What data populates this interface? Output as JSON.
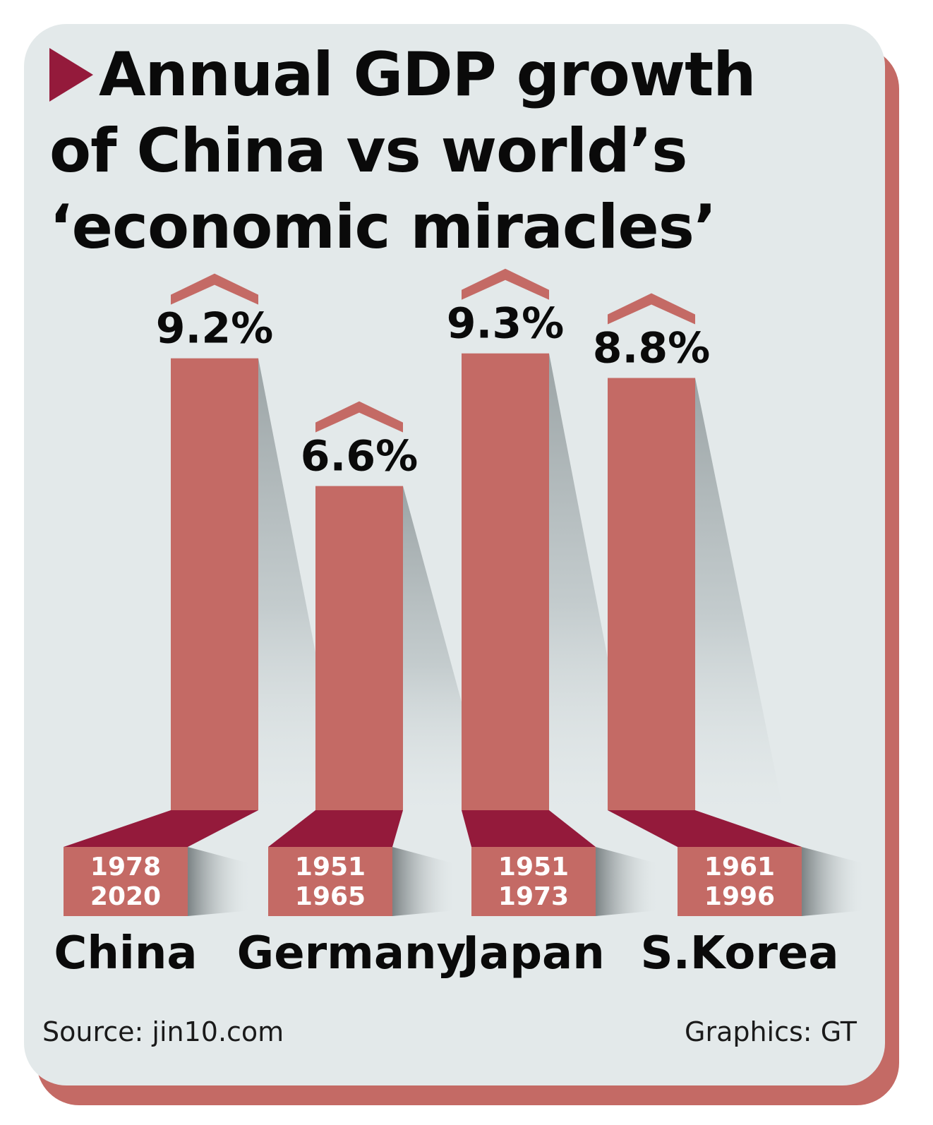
{
  "chart_data": {
    "type": "bar",
    "title_lines": [
      "Annual GDP growth",
      "of China vs world’s",
      "‘economic miracles’"
    ],
    "categories": [
      "China",
      "Germany",
      "Japan",
      "S.Korea"
    ],
    "values": [
      9.2,
      6.6,
      9.3,
      8.8
    ],
    "value_labels": [
      "9.2%",
      "6.6%",
      "9.3%",
      "8.8%"
    ],
    "periods": [
      [
        "1978",
        "2020"
      ],
      [
        "1951",
        "1965"
      ],
      [
        "1951",
        "1973"
      ],
      [
        "1961",
        "1996"
      ]
    ],
    "ylabel": "",
    "xlabel": "",
    "grid": false,
    "legend": "none"
  },
  "footer": {
    "source": "Source: jin10.com",
    "credit": "Graphics: GT"
  },
  "colors": {
    "bar": "#c46a65",
    "base_top": "#941a3b",
    "background": "#e3e9ea",
    "frame": "#c46a65",
    "text": "#0a0a0a"
  }
}
